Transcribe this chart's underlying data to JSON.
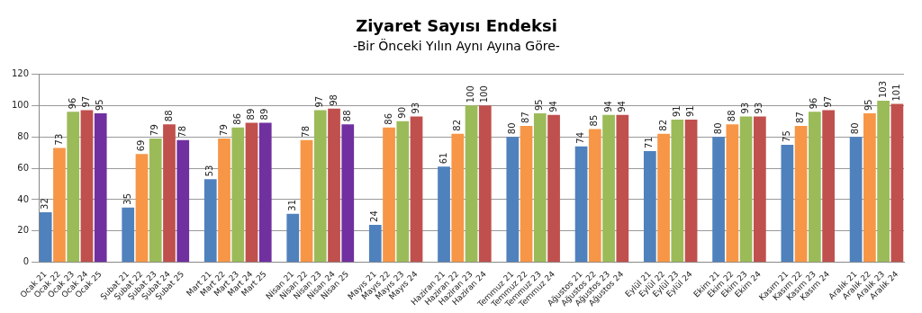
{
  "chart_data": {
    "type": "bar",
    "title": "Ziyaret Sayısı Endeksi",
    "subtitle": "-Bir Önceki Yılın Aynı Ayına Göre-",
    "categories": [
      "Ocak 21",
      "Ocak 22",
      "Ocak 23",
      "Ocak 24",
      "Ocak 25",
      null,
      "Şubat 21",
      "Şubat 22",
      "Şubat 23",
      "Şubat 24",
      "Şubat 25",
      null,
      "Mart 21",
      "Mart 22",
      "Mart 23",
      "Mart 24",
      "Mart 25",
      null,
      "Nisan 21",
      "Nisan 22",
      "Nisan 23",
      "Nisan 24",
      "Nisan 25",
      null,
      "Mayıs 21",
      "Mayıs 22",
      "Mayıs 23",
      "Mayıs 24",
      null,
      "Haziran 21",
      "Haziran 22",
      "Haziran 23",
      "Haziran 24",
      null,
      "Temmuz 21",
      "Temmuz 22",
      "Temmuz 23",
      "Temmuz 24",
      null,
      "Ağustos 21",
      "Ağustos 22",
      "Ağustos 23",
      "Ağustos 24",
      null,
      "Eylül 21",
      "Eylül 22",
      "Eylül 23",
      "Eylül 24",
      null,
      "Ekim 21",
      "Ekim 22",
      "Ekim 23",
      "Ekim 24",
      null,
      "Kasım 21",
      "Kasım 22",
      "Kasım 23",
      "Kasım 24",
      null,
      "Aralık 21",
      "Aralık 22",
      "Aralık 23",
      "Aralık 24"
    ],
    "values": [
      32,
      73,
      96,
      97,
      95,
      null,
      35,
      69,
      79,
      88,
      78,
      null,
      53,
      79,
      86,
      89,
      89,
      null,
      31,
      78,
      97,
      98,
      88,
      null,
      24,
      86,
      90,
      93,
      null,
      61,
      82,
      100,
      100,
      null,
      80,
      87,
      95,
      94,
      null,
      74,
      85,
      94,
      94,
      null,
      71,
      82,
      91,
      91,
      null,
      80,
      88,
      93,
      93,
      null,
      75,
      87,
      96,
      97,
      null,
      80,
      95,
      103,
      101
    ],
    "colors": [
      "#4f81bd",
      "#f79646",
      "#9bbb59",
      "#c0504d",
      "#7030a0",
      "#ffffff",
      "#4f81bd",
      "#f79646",
      "#9bbb59",
      "#c0504d",
      "#7030a0",
      "#ffffff",
      "#4f81bd",
      "#f79646",
      "#9bbb59",
      "#c0504d",
      "#7030a0",
      "#ffffff",
      "#4f81bd",
      "#f79646",
      "#9bbb59",
      "#c0504d",
      "#7030a0",
      "#ffffff",
      "#4f81bd",
      "#f79646",
      "#9bbb59",
      "#c0504d",
      "#ffffff",
      "#4f81bd",
      "#f79646",
      "#9bbb59",
      "#c0504d",
      "#ffffff",
      "#4f81bd",
      "#f79646",
      "#9bbb59",
      "#c0504d",
      "#ffffff",
      "#4f81bd",
      "#f79646",
      "#9bbb59",
      "#c0504d",
      "#ffffff",
      "#4f81bd",
      "#f79646",
      "#9bbb59",
      "#c0504d",
      "#ffffff",
      "#4f81bd",
      "#f79646",
      "#9bbb59",
      "#c0504d",
      "#ffffff",
      "#4f81bd",
      "#f79646",
      "#9bbb59",
      "#c0504d",
      "#ffffff",
      "#4f81bd",
      "#f79646",
      "#9bbb59",
      "#c0504d"
    ],
    "ylim": [
      0,
      120
    ],
    "yticks": [
      0,
      20,
      40,
      60,
      80,
      100,
      120
    ],
    "grid": "y",
    "legend": false,
    "data_labels": true
  }
}
